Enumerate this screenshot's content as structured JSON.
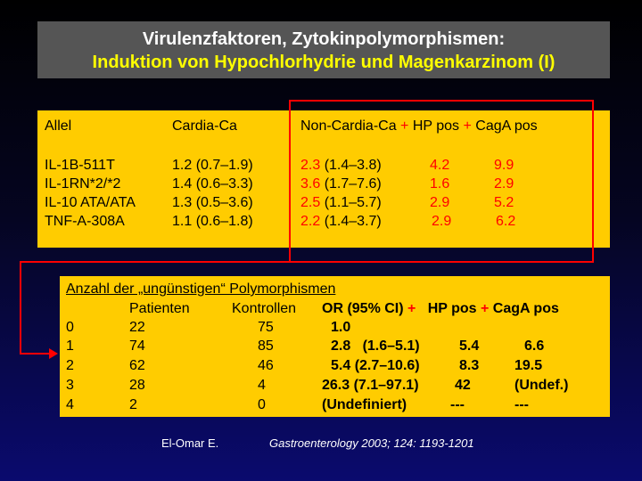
{
  "title": {
    "line1": "Virulenzfaktoren, Zytokinpolymorphismen:",
    "line2": "Induktion von Hypochlorhydrie und Magenkarzinom (I)"
  },
  "table1": {
    "headers": {
      "allel": "Allel",
      "cardia": "Cardia-Ca",
      "noncardia": "Non-Cardia-Ca",
      "plus1": "+",
      "hppos": "HP pos",
      "plus2": "+",
      "cagapos": "CagA pos"
    },
    "rows": [
      {
        "allel": "IL-1B-511T",
        "cardia": "1.2 (0.7–1.9)",
        "or": "2.3",
        "ci": "(1.4–3.8)",
        "hp": "4.2",
        "caga": "9.9"
      },
      {
        "allel": "IL-1RN*2/*2",
        "cardia": "1.4 (0.6–3.3)",
        "or": "3.6",
        "ci": "(1.7–7.6)",
        "hp": "1.6",
        "caga": "2.9"
      },
      {
        "allel": "IL-10 ATA/ATA",
        "cardia": "1.3 (0.5–3.6)",
        "or": "2.5",
        "ci": "(1.1–5.7)",
        "hp": "2.9",
        "caga": "5.2"
      },
      {
        "allel": "TNF-A-308A",
        "cardia": "1.1 (0.6–1.8)",
        "or": "2.2",
        "ci": "(1.4–3.7)",
        "hp": "2.9",
        "caga": "6.2"
      }
    ]
  },
  "table2": {
    "heading": "Anzahl der „ungünstigen“ Polymorphismen",
    "headers": {
      "patienten": "Patienten",
      "kontrollen": "Kontrollen",
      "or": "OR (95% CI)",
      "plus1": "+",
      "hppos": "HP pos",
      "plus2": "+",
      "cagapos": "CagA pos"
    },
    "rows": [
      {
        "n": "0",
        "pat": "22",
        "kon": "75",
        "or": "1.0",
        "hp": "",
        "caga": ""
      },
      {
        "n": "1",
        "pat": "74",
        "kon": "85",
        "or": "2.8   (1.6–5.1)",
        "hp": "5.4",
        "caga": "6.6"
      },
      {
        "n": "2",
        "pat": "62",
        "kon": "46",
        "or": "5.4 (2.7–10.6)",
        "hp": "8.3",
        "caga": "19.5"
      },
      {
        "n": "3",
        "pat": "28",
        "kon": "4",
        "or": "26.3 (7.1–97.1)",
        "hp": "42",
        "caga": "(Undef.)"
      },
      {
        "n": "4",
        "pat": "2",
        "kon": "0",
        "or": "(Undefiniert)",
        "hp": "---",
        "caga": "---"
      }
    ]
  },
  "citation": {
    "author": "El-Omar E.",
    "journal": "Gastroenterology 2003; 124: 1193-1201"
  },
  "colors": {
    "title_bg": "#555555",
    "title_line2": "#ffff00",
    "table_bg": "#ffcc00",
    "highlight": "#ff0000"
  }
}
